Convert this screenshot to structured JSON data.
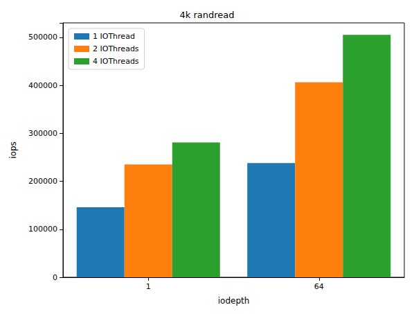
{
  "chart_data": {
    "type": "bar",
    "title": "4k randread",
    "x_label": "iodepth",
    "y_label": "iops",
    "categories": [
      "1",
      "64"
    ],
    "series": [
      {
        "name": "1 IOThread",
        "color": "#1f77b4",
        "values": [
          146000,
          238000
        ]
      },
      {
        "name": "2 IOThreads",
        "color": "#ff7f0e",
        "values": [
          235000,
          406000
        ]
      },
      {
        "name": "4 IOThreads",
        "color": "#2ca02c",
        "values": [
          281000,
          505000
        ]
      }
    ],
    "ylim": [
      0,
      530000
    ],
    "yticks": [
      0,
      100000,
      200000,
      300000,
      400000,
      500000
    ],
    "grid": false,
    "legend": "upper left"
  }
}
